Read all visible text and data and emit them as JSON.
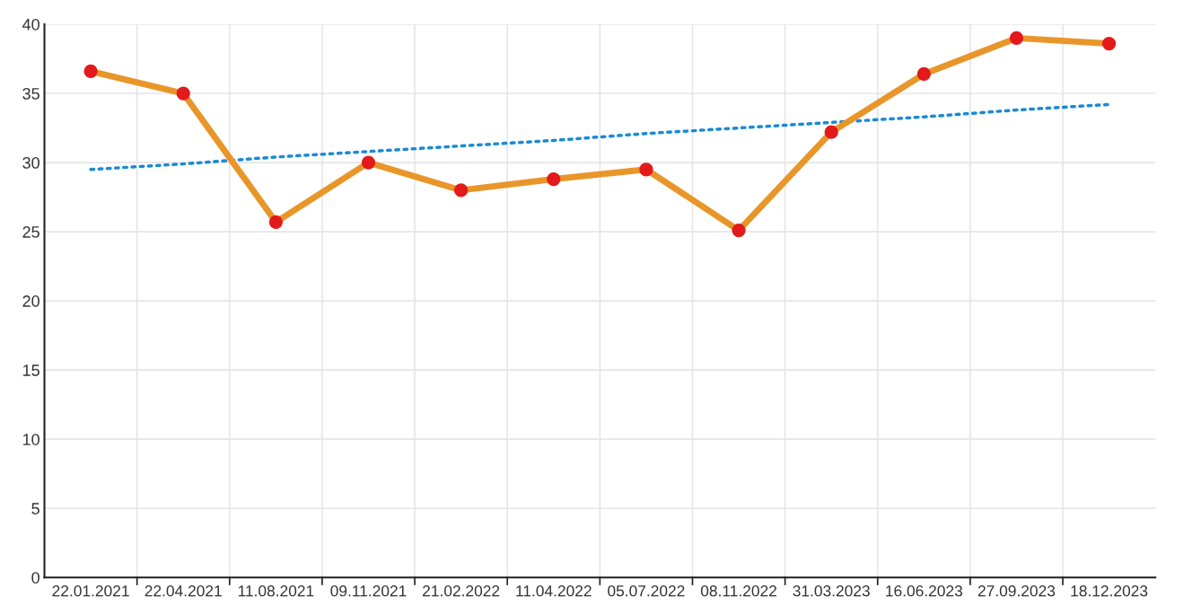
{
  "chart_data": {
    "type": "line",
    "categories": [
      "22.01.2021",
      "22.04.2021",
      "11.08.2021",
      "09.11.2021",
      "21.02.2022",
      "11.04.2022",
      "05.07.2022",
      "08.11.2022",
      "31.03.2023",
      "16.06.2023",
      "27.09.2023",
      "18.12.2023"
    ],
    "series": [
      {
        "color": "#e8962a",
        "marker": "circle",
        "line_style": "solid",
        "values": [
          36.6,
          35.0,
          25.7,
          30.0,
          28.0,
          28.8,
          29.5,
          25.1,
          32.2,
          36.4,
          39.0,
          38.6
        ]
      },
      {
        "color": "#1a8ad4",
        "marker": "none",
        "line_style": "dotted",
        "values": [
          29.5,
          29.9,
          30.4,
          30.8,
          31.2,
          31.6,
          32.1,
          32.5,
          32.9,
          33.3,
          33.8,
          34.2
        ]
      }
    ],
    "ylim": [
      0,
      40
    ],
    "yticks": [
      0,
      5,
      10,
      15,
      20,
      25,
      30,
      35,
      40
    ],
    "grid": true,
    "legend": false
  }
}
